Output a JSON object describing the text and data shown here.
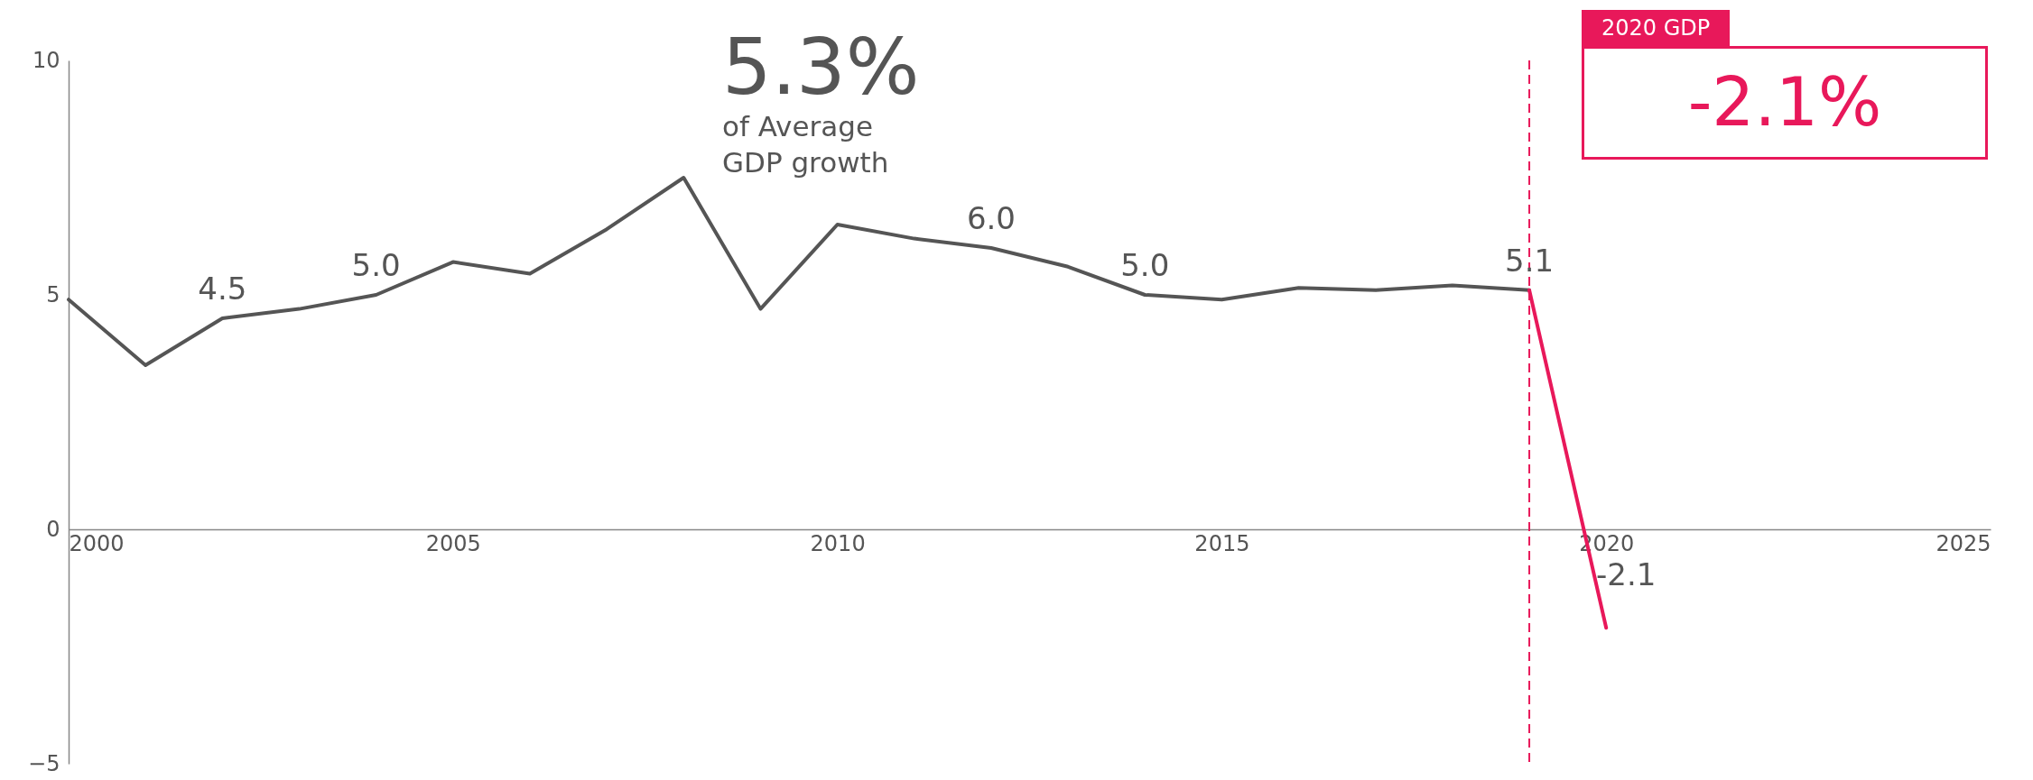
{
  "chart_data": {
    "type": "line",
    "x": [
      2000,
      2001,
      2002,
      2003,
      2004,
      2005,
      2006,
      2007,
      2008,
      2009,
      2010,
      2011,
      2012,
      2013,
      2014,
      2015,
      2016,
      2017,
      2018,
      2019,
      2020
    ],
    "series": [
      {
        "color": "#555555",
        "values": [
          4.9,
          3.5,
          4.5,
          4.7,
          5.0,
          5.7,
          5.45,
          6.4,
          7.5,
          4.7,
          6.5,
          6.2,
          6.0,
          5.6,
          5.0,
          4.9,
          5.15,
          5.1,
          5.2,
          5.1,
          null
        ],
        "value_labels": [
          null,
          null,
          "4.5",
          null,
          "5.0",
          null,
          null,
          null,
          null,
          null,
          null,
          null,
          "6.0",
          null,
          "5.0",
          null,
          null,
          null,
          null,
          "5.1",
          null
        ]
      },
      {
        "color": "#e8185a",
        "values": [
          null,
          null,
          null,
          null,
          null,
          null,
          null,
          null,
          null,
          null,
          null,
          null,
          null,
          null,
          null,
          null,
          null,
          null,
          null,
          5.1,
          -2.1
        ],
        "value_labels": [
          null,
          null,
          null,
          null,
          null,
          null,
          null,
          null,
          null,
          null,
          null,
          null,
          null,
          null,
          null,
          null,
          null,
          null,
          null,
          null,
          "-2.1"
        ]
      }
    ],
    "xlim": [
      2000,
      2025
    ],
    "xticks": [
      2000,
      2005,
      2010,
      2015,
      2020,
      2025
    ],
    "ylim": [
      -5,
      10
    ],
    "yticks": [
      -5,
      0,
      5,
      10
    ],
    "ref_lines": [
      {
        "axis": "x",
        "value": 2019,
        "color": "#e8185a",
        "line_style": "dashed"
      }
    ],
    "annotations": [
      "5.3%",
      "of Average GDP growth",
      "2020 GDP",
      "-2.1%"
    ]
  }
}
